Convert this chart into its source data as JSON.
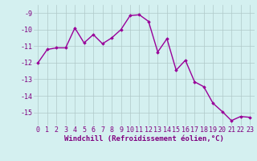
{
  "x": [
    0,
    1,
    2,
    3,
    4,
    5,
    6,
    7,
    8,
    9,
    10,
    11,
    12,
    13,
    14,
    15,
    16,
    17,
    18,
    19,
    20,
    21,
    22,
    23
  ],
  "y": [
    -12.0,
    -11.2,
    -11.1,
    -11.1,
    -9.9,
    -10.8,
    -10.3,
    -10.85,
    -10.5,
    -10.0,
    -9.15,
    -9.1,
    -9.5,
    -11.35,
    -10.55,
    -12.45,
    -11.85,
    -13.15,
    -13.45,
    -14.45,
    -14.95,
    -15.5,
    -15.25,
    -15.3
  ],
  "line_color": "#990099",
  "marker": "D",
  "marker_size": 1.8,
  "line_width": 1.0,
  "xlabel": "Windchill (Refroidissement éolien,°C)",
  "xlabel_fontsize": 6.5,
  "xlabel_color": "#800080",
  "xtick_labels": [
    "0",
    "1",
    "2",
    "3",
    "4",
    "5",
    "6",
    "7",
    "8",
    "9",
    "10",
    "11",
    "12",
    "13",
    "14",
    "15",
    "16",
    "17",
    "18",
    "19",
    "20",
    "21",
    "22",
    "23"
  ],
  "ytick_values": [
    -9,
    -10,
    -11,
    -12,
    -13,
    -14,
    -15
  ],
  "ylim": [
    -15.8,
    -8.5
  ],
  "xlim": [
    -0.5,
    23.5
  ],
  "bg_color": "#d4f0f0",
  "grid_color": "#b0c8c8",
  "tick_fontsize": 6,
  "tick_color": "#800080"
}
